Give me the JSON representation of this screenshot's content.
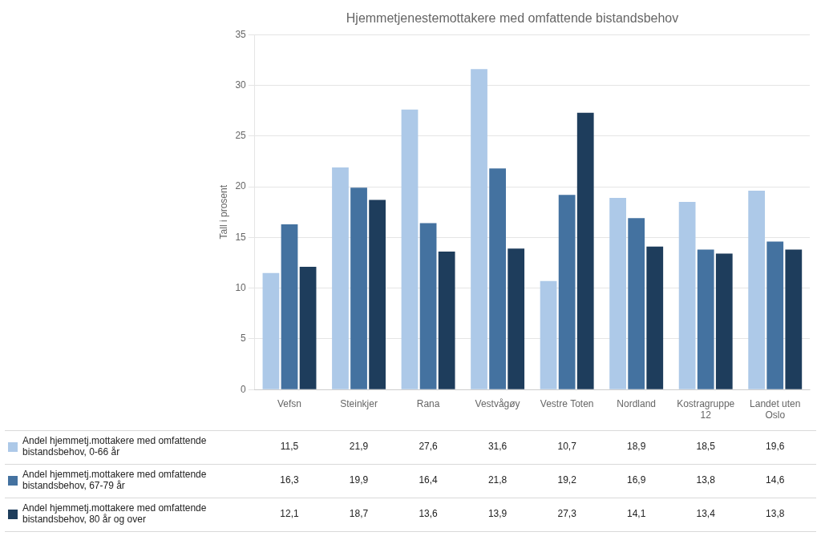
{
  "chart_data": {
    "type": "bar",
    "title": "Hjemmetjenestemottakere med omfattende bistandsbehov",
    "ylabel": "Tall i prosent",
    "categories": [
      "Vefsn",
      "Steinkjer",
      "Rana",
      "Vestvågøy",
      "Vestre Toten",
      "Nordland",
      "Kostragruppe\n12",
      "Landet uten\nOslo"
    ],
    "series": [
      {
        "name": "Andel hjemmetj.mottakere med omfattende\nbistandsbehov, 0-66 år",
        "color": "#adc9e8",
        "values": [
          11.5,
          21.9,
          27.6,
          31.6,
          10.7,
          18.9,
          18.5,
          19.6
        ],
        "value_labels": [
          "11,5",
          "21,9",
          "27,6",
          "31,6",
          "10,7",
          "18,9",
          "18,5",
          "19,6"
        ]
      },
      {
        "name": "Andel hjemmetj.mottakere med omfattende\nbistandsbehov, 67-79 år",
        "color": "#4472a0",
        "values": [
          16.3,
          19.9,
          16.4,
          21.8,
          19.2,
          16.9,
          13.8,
          14.6
        ],
        "value_labels": [
          "16,3",
          "19,9",
          "16,4",
          "21,8",
          "19,2",
          "16,9",
          "13,8",
          "14,6"
        ]
      },
      {
        "name": "Andel hjemmetj.mottakere med omfattende\nbistandsbehov, 80 år og over",
        "color": "#1e3d5c",
        "values": [
          12.1,
          18.7,
          13.6,
          13.9,
          27.3,
          14.1,
          13.4,
          13.8
        ],
        "value_labels": [
          "12,1",
          "18,7",
          "13,6",
          "13,9",
          "27,3",
          "14,1",
          "13,4",
          "13,8"
        ]
      }
    ],
    "ylim": [
      0,
      35
    ],
    "yticks": [
      0,
      5,
      10,
      15,
      20,
      25,
      30,
      35
    ],
    "grid": true,
    "data_labels": true
  }
}
